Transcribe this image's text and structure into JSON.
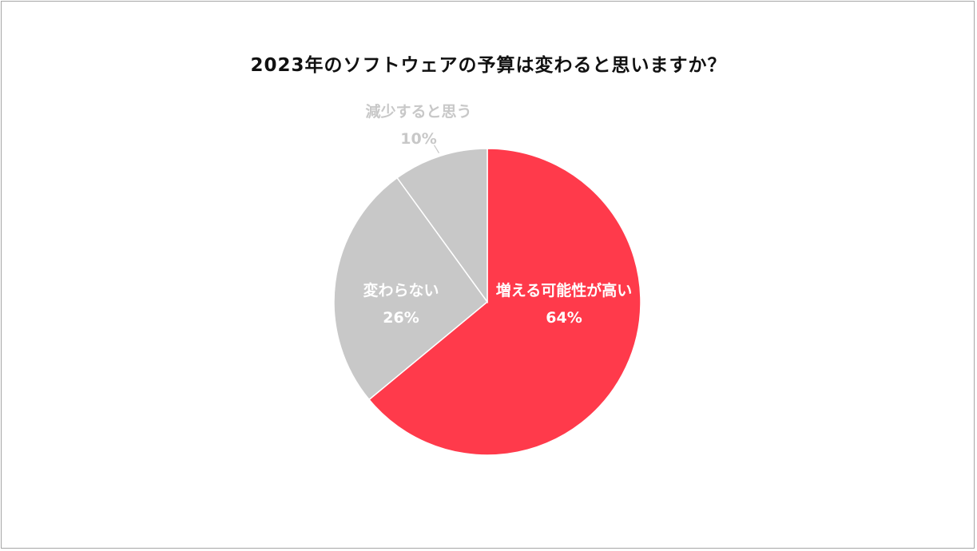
{
  "chart_data": {
    "type": "pie",
    "title": "2023年のソフトウェアの予算は変わると思いますか？",
    "start_angle": "top",
    "direction": "clockwise",
    "slices": [
      {
        "label": "増える可能性が高い",
        "value": 64,
        "value_label": "64%",
        "color": "#FF3A4B",
        "label_color": "#FFFFFF",
        "label_position": "inside"
      },
      {
        "label": "変わらない",
        "value": 26,
        "value_label": "26%",
        "color": "#C8C8C8",
        "label_color": "#FFFFFF",
        "label_position": "inside"
      },
      {
        "label": "減少すると思う",
        "value": 10,
        "value_label": "10%",
        "color": "#C8C8C8",
        "label_color": "#C8C8C8",
        "label_position": "outside"
      }
    ]
  }
}
